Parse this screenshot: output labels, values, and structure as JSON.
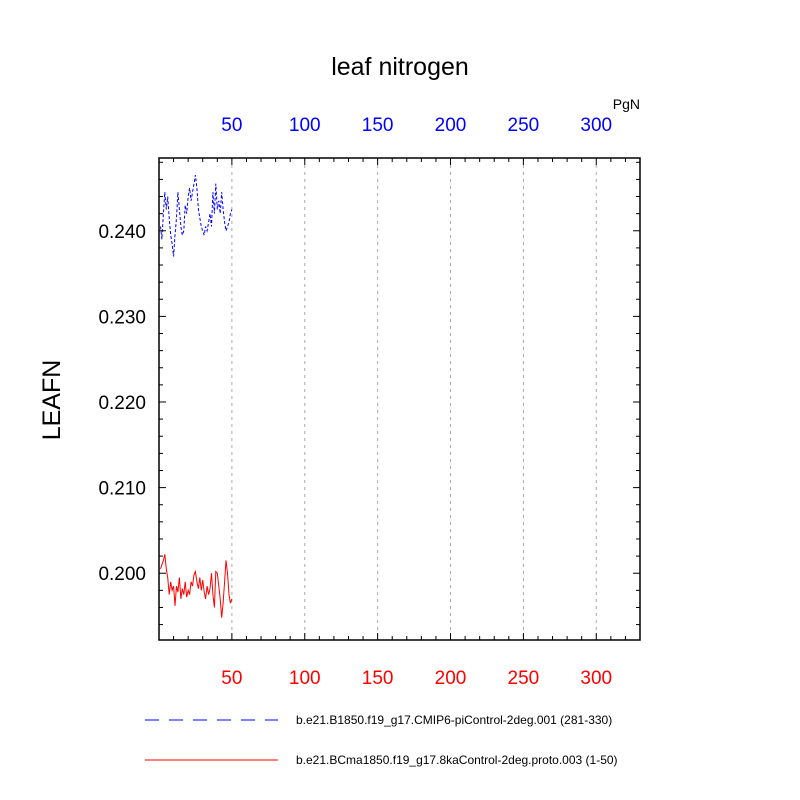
{
  "chart_data": {
    "type": "line",
    "title": "leaf nitrogen",
    "ylabel": "LEAFN",
    "units": "PgN",
    "xlim": [
      0,
      330
    ],
    "ylim": [
      0.1922,
      0.2485
    ],
    "grid": "vertical-dashed",
    "x_top_ticks": [
      50,
      100,
      150,
      200,
      250,
      300
    ],
    "x_bottom_ticks": [
      50,
      100,
      150,
      200,
      250,
      300
    ],
    "y_ticks": [
      0.2,
      0.21,
      0.22,
      0.23,
      0.24
    ],
    "y_tick_labels": [
      "0.200",
      "0.210",
      "0.220",
      "0.230",
      "0.240"
    ],
    "top_axis_color": "#0000ff",
    "bottom_axis_color": "#ff0000",
    "legend_placement": "bottom",
    "series": [
      {
        "name": "b.e21.B1850.f19_g17.CMIP6-piControl-2deg.001 (281-330)",
        "color": "#0000ff",
        "dash": true,
        "x": [
          1,
          2,
          3,
          4,
          5,
          6,
          7,
          8,
          9,
          10,
          11,
          12,
          13,
          14,
          15,
          16,
          17,
          18,
          19,
          20,
          21,
          22,
          23,
          24,
          25,
          26,
          27,
          28,
          29,
          30,
          31,
          32,
          33,
          34,
          35,
          36,
          37,
          38,
          39,
          40,
          41,
          42,
          43,
          44,
          45,
          46,
          47,
          48,
          49,
          50
        ],
        "y": [
          0.2405,
          0.239,
          0.242,
          0.2445,
          0.2425,
          0.244,
          0.2415,
          0.2395,
          0.2385,
          0.237,
          0.2395,
          0.2415,
          0.2445,
          0.2425,
          0.2405,
          0.2395,
          0.24,
          0.243,
          0.242,
          0.244,
          0.245,
          0.2435,
          0.2445,
          0.2455,
          0.2465,
          0.245,
          0.2425,
          0.2415,
          0.2405,
          0.24,
          0.2395,
          0.2405,
          0.24,
          0.241,
          0.242,
          0.2405,
          0.2445,
          0.242,
          0.2455,
          0.2425,
          0.2435,
          0.242,
          0.2445,
          0.2425,
          0.241,
          0.24,
          0.2405,
          0.241,
          0.242,
          0.2425
        ]
      },
      {
        "name": "b.e21.BCma1850.f19_g17.8kaControl-2deg.proto.003 (1-50)",
        "color": "#ff0000",
        "dash": false,
        "x": [
          1,
          2,
          3,
          4,
          5,
          6,
          7,
          8,
          9,
          10,
          11,
          12,
          13,
          14,
          15,
          16,
          17,
          18,
          19,
          20,
          21,
          22,
          23,
          24,
          25,
          26,
          27,
          28,
          29,
          30,
          31,
          32,
          33,
          34,
          35,
          36,
          37,
          38,
          39,
          40,
          41,
          42,
          43,
          44,
          45,
          46,
          47,
          48,
          49,
          50
        ],
        "y": [
          0.2005,
          0.201,
          0.2015,
          0.2022,
          0.2005,
          0.1995,
          0.1975,
          0.199,
          0.198,
          0.1985,
          0.1962,
          0.1985,
          0.1978,
          0.1995,
          0.197,
          0.1982,
          0.1975,
          0.199,
          0.1972,
          0.198,
          0.1975,
          0.199,
          0.1985,
          0.1998,
          0.2002,
          0.199,
          0.1982,
          0.1995,
          0.198,
          0.1992,
          0.1978,
          0.197,
          0.1985,
          0.1975,
          0.1982,
          0.2,
          0.1975,
          0.196,
          0.2002,
          0.2,
          0.1985,
          0.197,
          0.1948,
          0.1965,
          0.199,
          0.2015,
          0.2,
          0.1975,
          0.1965,
          0.197
        ]
      }
    ]
  }
}
